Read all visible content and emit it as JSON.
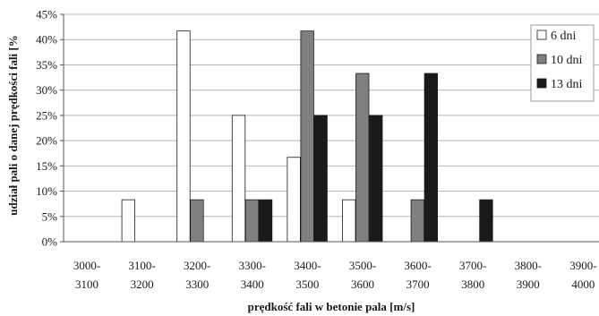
{
  "chart_data": {
    "type": "bar",
    "title": "",
    "xlabel": "prędkość fali w betonie pala [m/s]",
    "ylabel": "udział pali o danej prędkości fali [%",
    "ylim": [
      0,
      45
    ],
    "y_ticks": [
      "0%",
      "5%",
      "10%",
      "15%",
      "20%",
      "25%",
      "30%",
      "35%",
      "40%",
      "45%"
    ],
    "grid": "horizontal",
    "legend_position": "right",
    "categories": [
      [
        "3000-",
        "3100"
      ],
      [
        "3100-",
        "3200"
      ],
      [
        "3200-",
        "3300"
      ],
      [
        "3300-",
        "3400"
      ],
      [
        "3400-",
        "3500"
      ],
      [
        "3500-",
        "3600"
      ],
      [
        "3600-",
        "3700"
      ],
      [
        "3700-",
        "3800"
      ],
      [
        "3800-",
        "3900"
      ],
      [
        "3900-",
        "4000"
      ]
    ],
    "series": [
      {
        "name": "6 dni",
        "color": "#ffffff",
        "values": [
          0,
          8.3,
          41.7,
          25,
          16.7,
          8.3,
          0,
          0,
          0,
          0
        ]
      },
      {
        "name": "10 dni",
        "color": "#808080",
        "values": [
          0,
          0,
          8.3,
          8.3,
          41.7,
          33.3,
          8.3,
          0,
          0,
          0
        ]
      },
      {
        "name": "13 dni",
        "color": "#1a1a1a",
        "values": [
          0,
          0,
          0,
          8.3,
          25,
          25,
          33.3,
          8.3,
          0,
          0
        ]
      }
    ]
  }
}
